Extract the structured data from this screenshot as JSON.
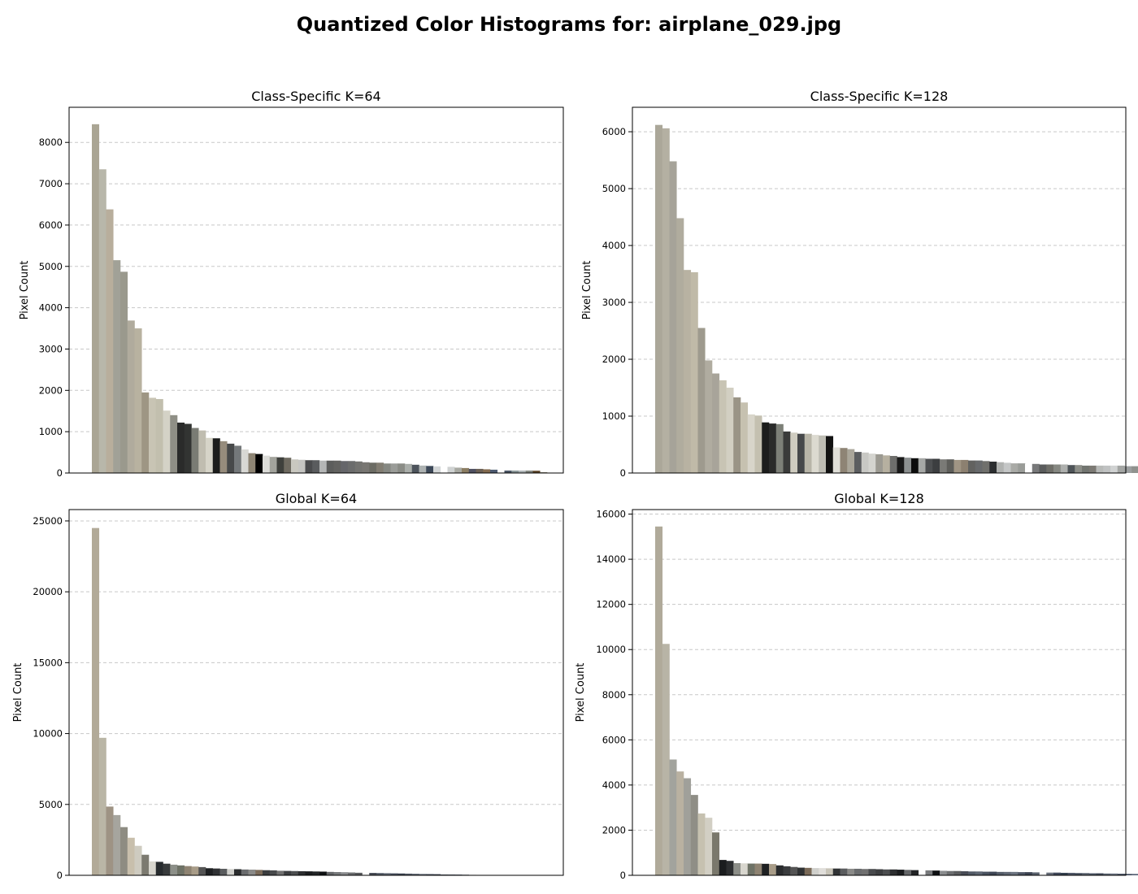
{
  "figure": {
    "title": "Quantized Color Histograms for: airplane_029.jpg"
  },
  "chart_data": [
    {
      "type": "bar",
      "title": "Class-Specific K=64",
      "xlabel": "",
      "ylabel": "Pixel Count",
      "ylim": [
        0,
        8850
      ],
      "yticks": [
        0,
        1000,
        2000,
        3000,
        4000,
        5000,
        6000,
        7000,
        8000
      ],
      "grid": "y-dashed",
      "xticks": "none",
      "values": [
        8440,
        7350,
        6380,
        5150,
        4870,
        3690,
        3500,
        1950,
        1820,
        1790,
        1510,
        1400,
        1220,
        1190,
        1090,
        1030,
        850,
        840,
        770,
        710,
        660,
        570,
        480,
        460,
        420,
        390,
        380,
        370,
        330,
        320,
        310,
        310,
        300,
        300,
        300,
        290,
        290,
        280,
        260,
        250,
        250,
        230,
        230,
        230,
        220,
        200,
        180,
        170,
        160,
        0,
        150,
        130,
        120,
        100,
        100,
        90,
        80,
        0,
        60,
        60,
        60,
        60,
        55,
        20
      ],
      "colors": [
        "#aaa594",
        "#b8b7aa",
        "#b8ae9c",
        "#a1a197",
        "#9a998d",
        "#b0ab9d",
        "#b8b2a0",
        "#9e9684",
        "#c8c4b4",
        "#c2bfae",
        "#d4d2c6",
        "#8f8f86",
        "#2a2b2a",
        "#323432",
        "#7a7c74",
        "#c0bdb0",
        "#d6d4c8",
        "#1c1d1c",
        "#968c7c",
        "#47494a",
        "#74787a",
        "#d8d8d4",
        "#8d8473",
        "#000000",
        "#dcdcd8",
        "#a2a39c",
        "#3e403c",
        "#6e6a60",
        "#c9c8c0",
        "#c5c5c2",
        "#4a4b4d",
        "#5a5c5e",
        "#b4b6b6",
        "#5c5d5c",
        "#626260",
        "#65666a",
        "#6b6c6c",
        "#737370",
        "#787672",
        "#6c6c64",
        "#827d72",
        "#868882",
        "#9a9c98",
        "#8a8c86",
        "#aaaeaa",
        "#4d545c",
        "#adb2b2",
        "#3c4858",
        "#d4d7d8",
        "#ffffff",
        "#cfd2d2",
        "#a8a9a2",
        "#8b7d62",
        "#4f5060",
        "#6b6054",
        "#836b50",
        "#4d5a70",
        "#ffffff",
        "#4b5665",
        "#8a9698",
        "#adb3b5",
        "#82867f",
        "#5c4428",
        "#9a9684"
      ]
    },
    {
      "type": "bar",
      "title": "Class-Specific K=128",
      "xlabel": "",
      "ylabel": "Pixel Count",
      "ylim": [
        0,
        6430
      ],
      "yticks": [
        0,
        1000,
        2000,
        3000,
        4000,
        5000,
        6000
      ],
      "grid": "y-dashed",
      "xticks": "none",
      "values": [
        6120,
        6060,
        5480,
        4480,
        3570,
        3530,
        2550,
        1980,
        1750,
        1630,
        1500,
        1330,
        1240,
        1030,
        1010,
        890,
        870,
        860,
        730,
        710,
        690,
        690,
        670,
        660,
        650,
        450,
        440,
        420,
        370,
        360,
        340,
        330,
        310,
        300,
        280,
        270,
        260,
        260,
        250,
        250,
        240,
        240,
        230,
        230,
        220,
        220,
        210,
        200,
        190,
        180,
        170,
        170,
        160,
        160,
        150,
        150,
        150,
        150,
        140,
        140,
        130,
        130,
        130,
        130,
        130,
        130,
        120,
        120,
        120,
        110,
        110,
        110,
        100,
        100,
        100,
        100,
        90,
        90,
        90,
        90,
        90,
        0,
        90,
        80,
        80,
        80,
        80,
        70,
        70,
        70,
        60,
        60,
        60,
        50,
        50,
        40,
        40,
        40,
        40,
        30,
        30,
        30,
        30,
        30,
        30,
        20,
        20,
        20,
        20,
        20,
        20,
        20,
        10,
        10,
        10,
        10
      ],
      "colors": [
        "#aba799",
        "#b4b0a2",
        "#a6a399",
        "#b0ac9e",
        "#b8b2a2",
        "#c0baa8",
        "#9e9a8e",
        "#b0aca0",
        "#a8a49a",
        "#c8c4b4",
        "#d2cfc2",
        "#9a9486",
        "#c6c1b0",
        "#d8d5ca",
        "#c4c0b0",
        "#1c1d1c",
        "#2a2b2a",
        "#7d8078",
        "#3a3b3a",
        "#cfccc0",
        "#46484a",
        "#b8b5a8",
        "#dcdad0",
        "#bebdb4",
        "#121212",
        "#e0dfd8",
        "#8e8475",
        "#aaa69a",
        "#5c5e60",
        "#c8c8c4",
        "#d4d4cf",
        "#9c9a92",
        "#b6b0a0",
        "#6e6e6c",
        "#1a1a1a",
        "#8c9090",
        "#0c0c0c",
        "#a6a8a6",
        "#4c4e50",
        "#3c3e40",
        "#7a7a76",
        "#5e5e5a",
        "#a09584",
        "#8c8070",
        "#626260",
        "#686a6c",
        "#70706c",
        "#2c2e30",
        "#b0b2b0",
        "#c4c6c6",
        "#a9aaa6",
        "#9a9c98",
        "#ffffff",
        "#78797a",
        "#5a5c5c",
        "#6e6e68",
        "#868882",
        "#aeb0ae",
        "#4e5458",
        "#8c8e88",
        "#727570",
        "#7c7a74",
        "#b8bab8",
        "#c0c2c2",
        "#d0d2d2",
        "#a4a6a4",
        "#9c9fa0",
        "#90928e",
        "#8a8c8a",
        "#d8dadc",
        "#adb0b0",
        "#a0a4a6",
        "#9aa0a4",
        "#acb0b0",
        "#84878a",
        "#6a6e72",
        "#6c7074",
        "#8a8e92",
        "#aab0b4",
        "#7a8086",
        "#9aa0a6",
        "#ffffff",
        "#3c4858",
        "#8e8c84",
        "#4a5260",
        "#7a7468",
        "#5a626c",
        "#9c9888",
        "#5c646e",
        "#727a82",
        "#505a66",
        "#4e5864",
        "#7a6e60",
        "#6a6258",
        "#505c6a",
        "#4a5666",
        "#3e4a5a",
        "#606874",
        "#5a6474",
        "#7a8090",
        "#8a90a0",
        "#4a5870",
        "#5c6880",
        "#6a7490",
        "#7a84a0",
        "#3a4456",
        "#606a7c",
        "#707888",
        "#808898",
        "#6c6050",
        "#806a50",
        "#5a6070",
        "#4a5060",
        "#3a4050",
        "#5c5040",
        "#604830"
      ]
    },
    {
      "type": "bar",
      "title": "Global K=64",
      "xlabel": "",
      "ylabel": "Pixel Count",
      "ylim": [
        0,
        25800
      ],
      "yticks": [
        0,
        5000,
        10000,
        15000,
        20000,
        25000
      ],
      "grid": "y-dashed",
      "xticks": "none",
      "values": [
        24500,
        9700,
        4850,
        4250,
        3400,
        2650,
        2080,
        1450,
        980,
        950,
        820,
        750,
        700,
        650,
        620,
        580,
        500,
        480,
        460,
        440,
        430,
        410,
        400,
        380,
        360,
        350,
        320,
        310,
        300,
        290,
        280,
        270,
        260,
        240,
        230,
        220,
        200,
        180,
        0,
        170,
        160,
        150,
        140,
        130,
        120,
        110,
        100,
        90,
        80,
        60,
        60,
        50,
        40,
        30
      ],
      "colors": [
        "#b2aa98",
        "#bab6a6",
        "#9e9384",
        "#a6a59e",
        "#8e8c82",
        "#c8bfac",
        "#cecbc0",
        "#7c7a70",
        "#d8d6ce",
        "#272b2e",
        "#383b3c",
        "#8c8f88",
        "#6e7266",
        "#8e8372",
        "#a89c88",
        "#545454",
        "#1e2022",
        "#303234",
        "#5a5c5e",
        "#d0d0cc",
        "#2a2c2e",
        "#6a6c6e",
        "#8a8a88",
        "#7a6a58",
        "#3a3c3e",
        "#484a4c",
        "#707070",
        "#3c3e40",
        "#4c4e50",
        "#2c2e30",
        "#1a1c1e",
        "#222426",
        "#0e1012",
        "#646668",
        "#787a7c",
        "#8a8c8e",
        "#6c6e70",
        "#5a5c5e",
        "#ffffff",
        "#484c56",
        "#525a66",
        "#5e6672",
        "#4a5260",
        "#3e4654",
        "#545c68",
        "#606874",
        "#6c7480",
        "#4e5664",
        "#3c4452",
        "#5a626e",
        "#686e7a",
        "#40485a",
        "#34404e",
        "#505868"
      ]
    },
    {
      "type": "bar",
      "title": "Global K=128",
      "xlabel": "",
      "ylabel": "Pixel Count",
      "ylim": [
        0,
        16200
      ],
      "yticks": [
        0,
        2000,
        4000,
        6000,
        8000,
        10000,
        12000,
        14000,
        16000
      ],
      "grid": "y-dashed",
      "xticks": "none",
      "values": [
        15450,
        10250,
        5130,
        4600,
        4300,
        3560,
        2740,
        2550,
        1900,
        680,
        640,
        540,
        530,
        520,
        520,
        510,
        500,
        440,
        400,
        370,
        340,
        330,
        320,
        320,
        310,
        300,
        300,
        290,
        290,
        280,
        280,
        270,
        260,
        260,
        250,
        240,
        230,
        0,
        220,
        210,
        200,
        190,
        190,
        180,
        170,
        170,
        160,
        160,
        150,
        150,
        150,
        140,
        140,
        130,
        0,
        120,
        120,
        110,
        110,
        100,
        100,
        90,
        90,
        80,
        80,
        70,
        60,
        60,
        50,
        50,
        40,
        40,
        40,
        30,
        30,
        30,
        30,
        20,
        20,
        20
      ],
      "colors": [
        "#b0aa9a",
        "#b8b4a6",
        "#a2a39d",
        "#b9b1a1",
        "#a0a09a",
        "#8f8e86",
        "#c6c1b0",
        "#d2cfc4",
        "#7a786c",
        "#1a1c1e",
        "#2c2e30",
        "#8c8e88",
        "#d8d6ce",
        "#6e7266",
        "#8e8372",
        "#1e2022",
        "#a89c88",
        "#2a2c2e",
        "#3a3c3e",
        "#545454",
        "#303234",
        "#7a6a58",
        "#d0d0cc",
        "#e0deda",
        "#c8c4b8",
        "#303234",
        "#5a5c5e",
        "#8a8a88",
        "#6a6c6e",
        "#707070",
        "#484a4c",
        "#3c3e40",
        "#4c4e50",
        "#2c2e30",
        "#1a1c1e",
        "#646668",
        "#222426",
        "#ffffff",
        "#787a7c",
        "#0e1012",
        "#8a8c8e",
        "#6c6e70",
        "#5a5c5e",
        "#484c56",
        "#525a66",
        "#5e6672",
        "#4a5260",
        "#3e4654",
        "#545c68",
        "#606874",
        "#6c7480",
        "#4e5664",
        "#3c4452",
        "#5a626e",
        "#ffffff",
        "#686e7a",
        "#40485a",
        "#34404e",
        "#505868",
        "#46505e",
        "#5c6470",
        "#505a68",
        "#424a58",
        "#606a78",
        "#6e7684",
        "#4a5466",
        "#3c465a",
        "#546072",
        "#5e6a7c",
        "#48546a",
        "#667086",
        "#3e4a60",
        "#525e74",
        "#5a6478",
        "#6c768a",
        "#4a566c",
        "#3a465c",
        "#5e687c",
        "#6a748a",
        "#44506a"
      ]
    }
  ]
}
